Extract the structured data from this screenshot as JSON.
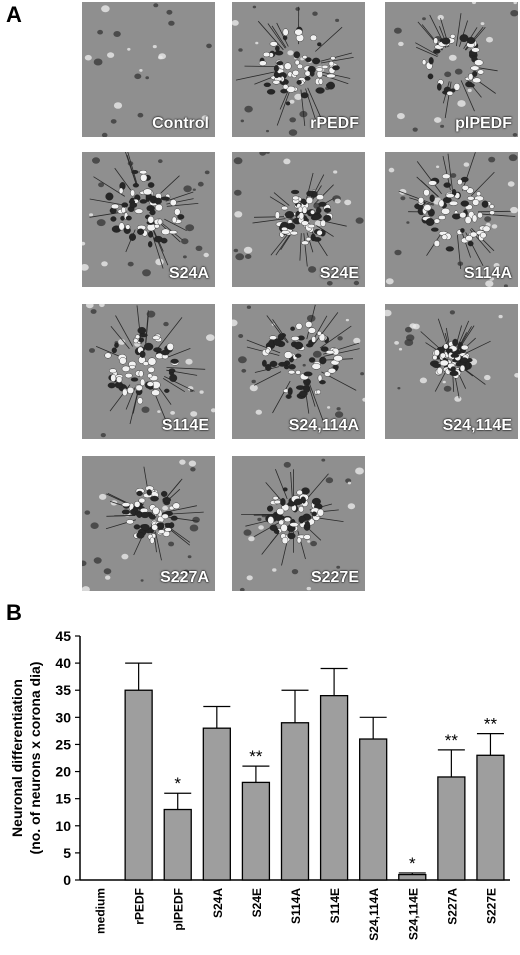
{
  "panel_a_label": "A",
  "panel_b_label": "B",
  "micrographs": [
    {
      "label": "Control",
      "cluster": "none"
    },
    {
      "label": "rPEDF",
      "cluster": "large"
    },
    {
      "label": "plPEDF",
      "cluster": "ring"
    },
    {
      "label": "S24A",
      "cluster": "large"
    },
    {
      "label": "S24E",
      "cluster": "medium"
    },
    {
      "label": "S114A",
      "cluster": "large"
    },
    {
      "label": "S114E",
      "cluster": "large"
    },
    {
      "label": "S24,114A",
      "cluster": "large"
    },
    {
      "label": "S24,114E",
      "cluster": "small"
    },
    {
      "label": "S227A",
      "cluster": "medium"
    },
    {
      "label": "S227E",
      "cluster": "medium"
    }
  ],
  "chart_data": {
    "type": "bar",
    "ylabel_line1": "Neuronal differentiation",
    "ylabel_line2": "(no. of neurons x corona dia)",
    "ylim": [
      0,
      45
    ],
    "yticks": [
      0,
      5,
      10,
      15,
      20,
      25,
      30,
      35,
      40,
      45
    ],
    "categories": [
      "medium",
      "rPEDF",
      "plPEDF",
      "S24A",
      "S24E",
      "S114A",
      "S114E",
      "S24,114A",
      "S24,114E",
      "S227A",
      "S227E"
    ],
    "values": [
      0,
      35,
      13,
      28,
      18,
      29,
      34,
      26,
      1,
      19,
      23
    ],
    "errors": [
      0,
      5,
      3,
      4,
      3,
      6,
      5,
      4,
      0.3,
      5,
      4
    ],
    "significance": [
      "",
      "",
      "*",
      "",
      "**",
      "",
      "",
      "",
      "*",
      "**",
      "**"
    ],
    "bar_color": "#9e9e9e"
  }
}
